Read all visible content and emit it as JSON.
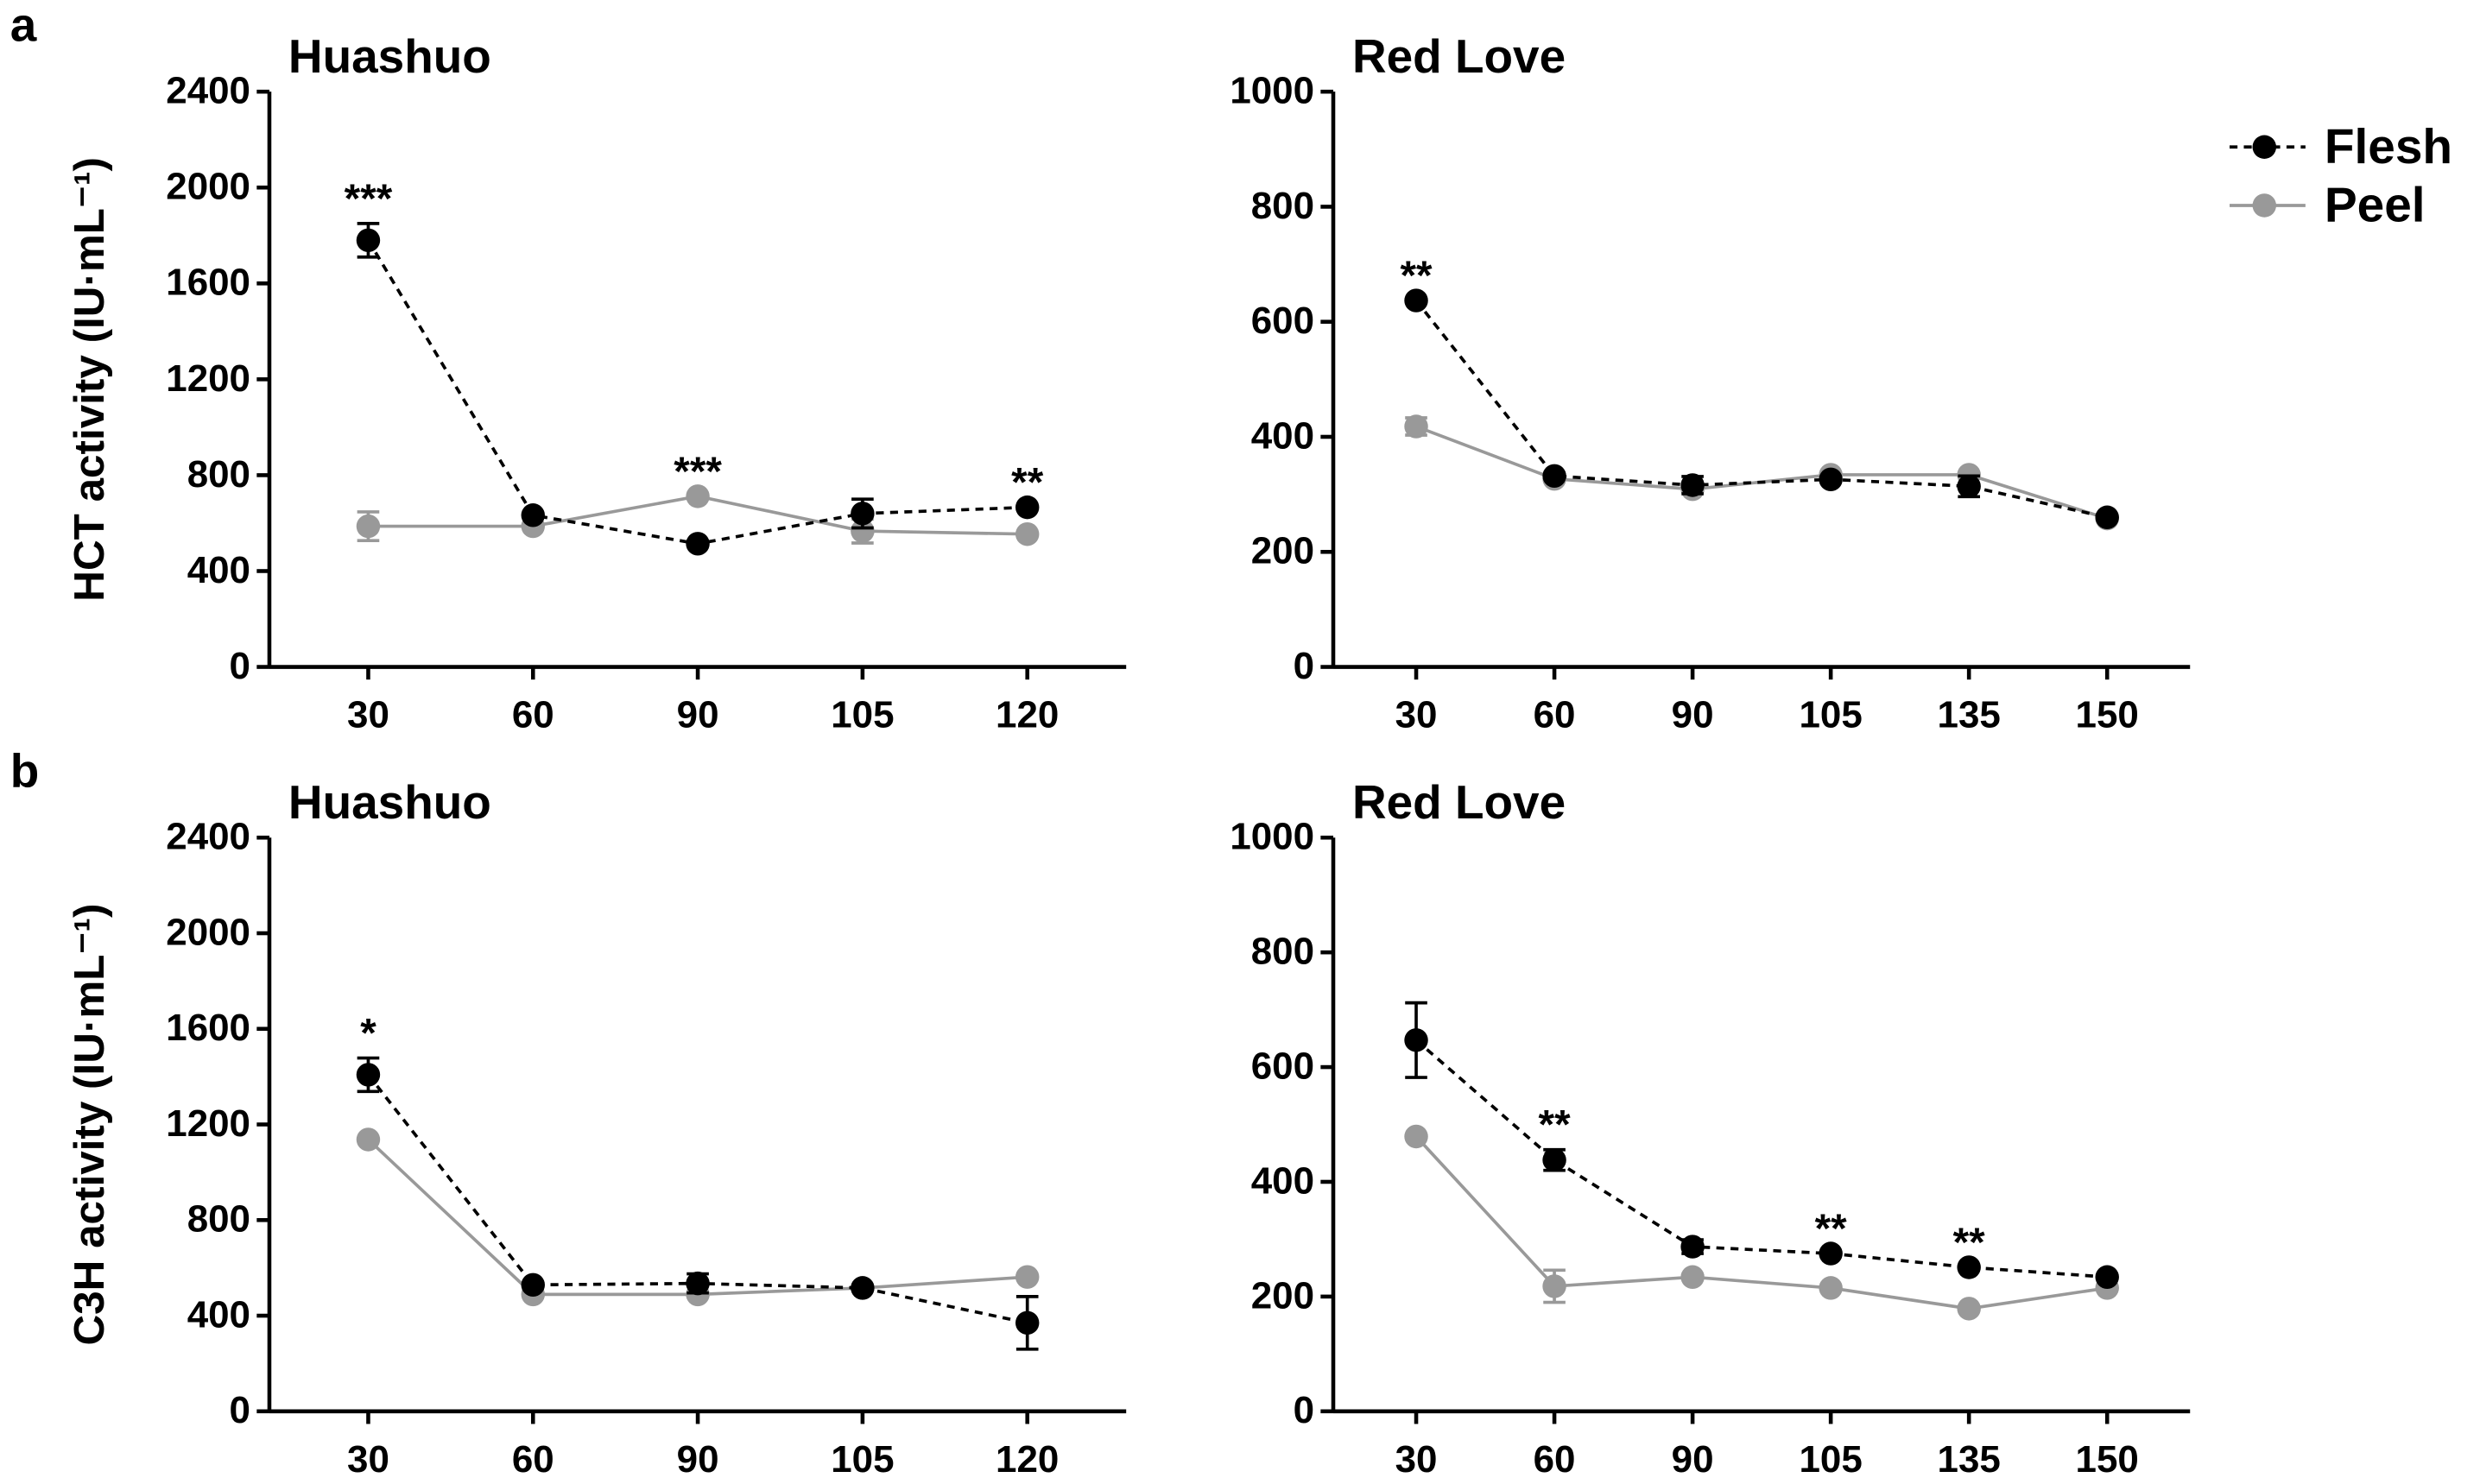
{
  "chart_data": [
    {
      "type": "line",
      "panel": "a",
      "title": "Huashuo",
      "y_label": "HCT activity (IU·mL⁻¹)",
      "categories": [
        "30",
        "60",
        "90",
        "105",
        "120"
      ],
      "ylim": [
        0,
        2400
      ],
      "yticks": [
        0,
        400,
        800,
        1200,
        1600,
        2000,
        2400
      ],
      "series": [
        {
          "name": "Flesh",
          "color": "#000000",
          "line_style": "dashed",
          "values": [
            1780,
            633,
            514,
            640,
            666
          ],
          "errors": [
            70,
            null,
            null,
            60,
            null
          ]
        },
        {
          "name": "Peel",
          "color": "#999999",
          "line_style": "solid",
          "values": [
            587,
            587,
            712,
            567,
            554
          ],
          "errors": [
            60,
            null,
            null,
            50,
            null
          ]
        }
      ],
      "significance": [
        "***",
        null,
        "***",
        null,
        "**"
      ]
    },
    {
      "type": "line",
      "title": "Red Love",
      "legend": "upper right",
      "categories": [
        "30",
        "60",
        "90",
        "105",
        "135",
        "150"
      ],
      "ylim": [
        0,
        1000
      ],
      "yticks": [
        0,
        200,
        400,
        600,
        800,
        1000
      ],
      "series": [
        {
          "name": "Flesh",
          "color": "#000000",
          "line_style": "dashed",
          "values": [
            637,
            332,
            316,
            326,
            314,
            260
          ],
          "errors": [
            null,
            null,
            15,
            null,
            18,
            null
          ]
        },
        {
          "name": "Peel",
          "color": "#999999",
          "line_style": "solid",
          "values": [
            418,
            327,
            309,
            334,
            334,
            258
          ],
          "errors": [
            15,
            null,
            null,
            null,
            null,
            null
          ]
        }
      ],
      "significance": [
        "**",
        null,
        null,
        null,
        null,
        null
      ]
    },
    {
      "type": "line",
      "panel": "b",
      "title": "Huashuo",
      "y_label": "C3H activity (IU·mL⁻¹)",
      "categories": [
        "30",
        "60",
        "90",
        "105",
        "120"
      ],
      "ylim": [
        0,
        2400
      ],
      "yticks": [
        0,
        400,
        800,
        1200,
        1600,
        2000,
        2400
      ],
      "series": [
        {
          "name": "Flesh",
          "color": "#000000",
          "line_style": "dashed",
          "values": [
            1408,
            529,
            535,
            516,
            370
          ],
          "errors": [
            70,
            null,
            40,
            null,
            110
          ]
        },
        {
          "name": "Peel",
          "color": "#999999",
          "line_style": "solid",
          "values": [
            1137,
            489,
            489,
            516,
            562
          ],
          "errors": [
            null,
            null,
            null,
            null,
            null
          ]
        }
      ],
      "significance": [
        "*",
        null,
        null,
        null,
        null
      ]
    },
    {
      "type": "line",
      "title": "Red Love",
      "categories": [
        "30",
        "60",
        "90",
        "105",
        "135",
        "150"
      ],
      "ylim": [
        0,
        1000
      ],
      "yticks": [
        0,
        200,
        400,
        600,
        800,
        1000
      ],
      "series": [
        {
          "name": "Flesh",
          "color": "#000000",
          "line_style": "dashed",
          "values": [
            647,
            438,
            287,
            275,
            251,
            234
          ],
          "errors": [
            65,
            18,
            12,
            null,
            null,
            null
          ]
        },
        {
          "name": "Peel",
          "color": "#999999",
          "line_style": "solid",
          "values": [
            479,
            218,
            234,
            215,
            179,
            215
          ],
          "errors": [
            null,
            28,
            null,
            null,
            null,
            null
          ]
        }
      ],
      "significance": [
        null,
        "**",
        null,
        "**",
        "**",
        null
      ]
    }
  ]
}
